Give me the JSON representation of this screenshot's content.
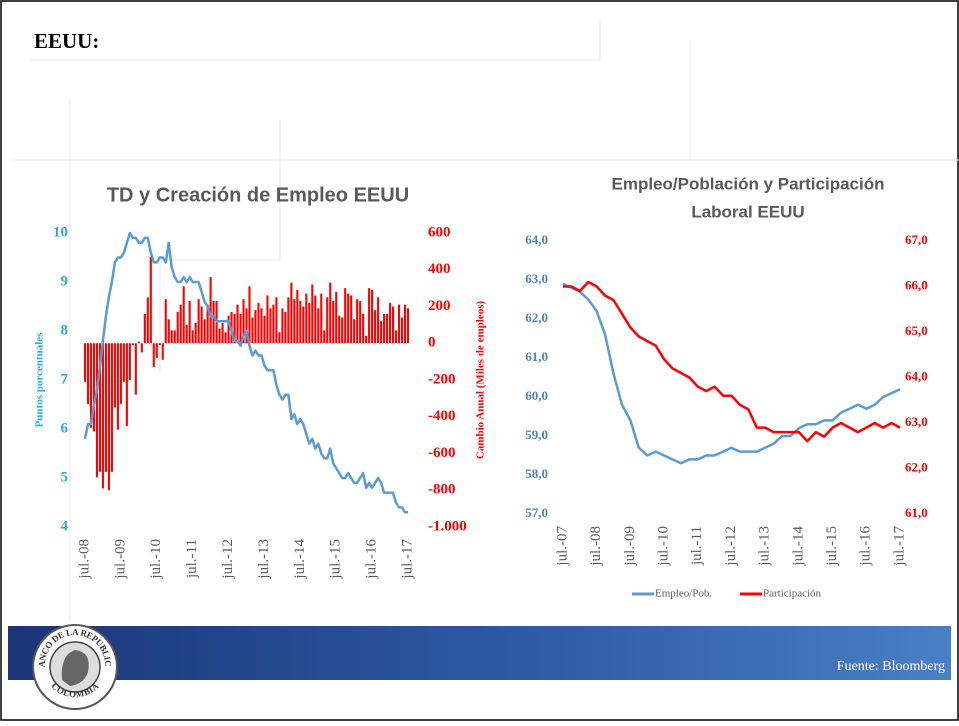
{
  "header": {
    "title": "EEUU:"
  },
  "footer": {
    "source": "Fuente: Bloomberg"
  },
  "logo": {
    "top": "BANCO DE LA REPUBLICA",
    "bottom": "COLOMBIA"
  },
  "chart_data": [
    {
      "type": "combo",
      "title": "TD y Creación de Empleo EEUU",
      "ylabel": "Puntos porcentuales",
      "y2label": "Cambio Anual (Miles de empleos)",
      "categories": [
        "jul.-08",
        null,
        null,
        null,
        null,
        null,
        null,
        null,
        null,
        null,
        null,
        null,
        "jul.-09",
        null,
        null,
        null,
        null,
        null,
        null,
        null,
        null,
        null,
        null,
        null,
        "jul.-10",
        null,
        null,
        null,
        null,
        null,
        null,
        null,
        null,
        null,
        null,
        null,
        "jul.-11",
        null,
        null,
        null,
        null,
        null,
        null,
        null,
        null,
        null,
        null,
        null,
        "jul.-12",
        null,
        null,
        null,
        null,
        null,
        null,
        null,
        null,
        null,
        null,
        null,
        "jul.-13",
        null,
        null,
        null,
        null,
        null,
        null,
        null,
        null,
        null,
        null,
        null,
        "jul.-14",
        null,
        null,
        null,
        null,
        null,
        null,
        null,
        null,
        null,
        null,
        null,
        "jul.-15",
        null,
        null,
        null,
        null,
        null,
        null,
        null,
        null,
        null,
        null,
        null,
        "jul.-16",
        null,
        null,
        null,
        null,
        null,
        null,
        null,
        null,
        null,
        null,
        null,
        "jul.-17"
      ],
      "ylim": [
        4,
        10
      ],
      "yticks": [
        4,
        5,
        6,
        7,
        8,
        9,
        10
      ],
      "y2lim": [
        -1000,
        600
      ],
      "y2ticks": [
        {
          "value": -1000,
          "label": "-1.000"
        },
        -800,
        -600,
        -400,
        -200,
        0,
        200,
        400,
        600
      ],
      "series": [
        {
          "type": "bar",
          "axis": "y2",
          "color": "#ff0000",
          "values": [
            -210,
            -330,
            -460,
            -480,
            -730,
            -700,
            -790,
            -700,
            -800,
            -700,
            -350,
            -470,
            -330,
            -210,
            -450,
            -200,
            -10,
            -280,
            10,
            -50,
            160,
            250,
            470,
            -130,
            -80,
            -10,
            -90,
            240,
            130,
            70,
            70,
            170,
            210,
            310,
            100,
            230,
            70,
            110,
            240,
            200,
            130,
            210,
            360,
            230,
            230,
            80,
            110,
            60,
            150,
            170,
            160,
            210,
            160,
            240,
            190,
            310,
            140,
            180,
            220,
            190,
            150,
            260,
            190,
            210,
            250,
            60,
            190,
            170,
            250,
            330,
            240,
            290,
            230,
            200,
            270,
            220,
            320,
            260,
            190,
            270,
            70,
            250,
            330,
            230,
            280,
            150,
            140,
            300,
            270,
            260,
            130,
            240,
            230,
            160,
            40,
            300,
            290,
            180,
            250,
            120,
            160,
            160,
            220,
            200,
            70,
            210,
            140,
            210,
            190
          ]
        },
        {
          "type": "line",
          "axis": "y",
          "color": "#5b9bd5",
          "values": [
            5.8,
            6.1,
            6.1,
            6.5,
            6.8,
            7.3,
            7.8,
            8.3,
            8.7,
            9.0,
            9.4,
            9.5,
            9.5,
            9.6,
            9.8,
            10.0,
            9.9,
            9.9,
            9.8,
            9.8,
            9.9,
            9.9,
            9.6,
            9.4,
            9.4,
            9.5,
            9.5,
            9.4,
            9.8,
            9.3,
            9.1,
            9.0,
            9.0,
            9.1,
            9.0,
            9.1,
            9.0,
            9.0,
            9.0,
            8.8,
            8.6,
            8.5,
            8.3,
            8.3,
            8.2,
            8.2,
            8.2,
            8.2,
            8.2,
            8.0,
            7.8,
            7.8,
            7.7,
            7.9,
            8.0,
            7.7,
            7.5,
            7.6,
            7.5,
            7.5,
            7.3,
            7.2,
            7.2,
            7.2,
            6.9,
            6.7,
            6.6,
            6.7,
            6.7,
            6.2,
            6.3,
            6.1,
            6.2,
            6.1,
            5.9,
            5.7,
            5.8,
            5.6,
            5.7,
            5.5,
            5.4,
            5.4,
            5.6,
            5.3,
            5.2,
            5.1,
            5.0,
            5.0,
            5.1,
            5.0,
            4.9,
            4.9,
            5.0,
            5.1,
            4.8,
            4.9,
            4.8,
            4.9,
            5.0,
            4.9,
            4.7,
            4.7,
            4.7,
            4.7,
            4.5,
            4.4,
            4.4,
            4.3,
            4.3
          ]
        }
      ]
    },
    {
      "type": "line",
      "title": "Empleo/Población y Participación Laboral EEUU",
      "title_lines": [
        "Empleo/Población y Participación",
        "Laboral EEUU"
      ],
      "categories": [
        "jul.-07",
        null,
        null,
        null,
        "jul.-08",
        null,
        null,
        null,
        "jul.-09",
        null,
        null,
        null,
        "jul.-10",
        null,
        null,
        null,
        "jul.-11",
        null,
        null,
        null,
        "jul.-12",
        null,
        null,
        null,
        "jul.-13",
        null,
        null,
        null,
        "jul.-14",
        null,
        null,
        null,
        "jul.-15",
        null,
        null,
        null,
        "jul.-16",
        null,
        null,
        null,
        "jul.-17"
      ],
      "ylim": [
        57,
        64
      ],
      "yticks": [
        {
          "value": 57,
          "label": "57,0"
        },
        {
          "value": 58,
          "label": "58,0"
        },
        {
          "value": 59,
          "label": "59,0"
        },
        {
          "value": 60,
          "label": "60,0"
        },
        {
          "value": 61,
          "label": "61,0"
        },
        {
          "value": 62,
          "label": "62,0"
        },
        {
          "value": 63,
          "label": "63,0"
        },
        {
          "value": 64,
          "label": "64,0"
        }
      ],
      "y2lim": [
        61,
        67
      ],
      "y2ticks": [
        {
          "value": 61,
          "label": "61,0"
        },
        {
          "value": 62,
          "label": "62,0"
        },
        {
          "value": 63,
          "label": "63,0"
        },
        {
          "value": 64,
          "label": "64,0"
        },
        {
          "value": 65,
          "label": "65,0"
        },
        {
          "value": 66,
          "label": "66,0"
        },
        {
          "value": 67,
          "label": "67,0"
        }
      ],
      "legend": "bottom",
      "series": [
        {
          "name": "Empleo/Pob.",
          "type": "line",
          "axis": "y",
          "color": "#5b9bd5",
          "values": [
            62.9,
            62.8,
            62.7,
            62.5,
            62.2,
            61.6,
            60.6,
            59.8,
            59.4,
            58.7,
            58.5,
            58.6,
            58.5,
            58.4,
            58.3,
            58.4,
            58.4,
            58.5,
            58.5,
            58.6,
            58.7,
            58.6,
            58.6,
            58.6,
            58.7,
            58.8,
            59.0,
            59.0,
            59.2,
            59.3,
            59.3,
            59.4,
            59.4,
            59.6,
            59.7,
            59.8,
            59.7,
            59.8,
            60.0,
            60.1,
            60.2
          ]
        },
        {
          "name": "Participación",
          "type": "line",
          "axis": "y2",
          "color": "#ff0000",
          "values": [
            66.0,
            66.0,
            65.9,
            66.1,
            66.0,
            65.8,
            65.7,
            65.4,
            65.1,
            64.9,
            64.8,
            64.7,
            64.4,
            64.2,
            64.1,
            64.0,
            63.8,
            63.7,
            63.8,
            63.6,
            63.6,
            63.4,
            63.3,
            62.9,
            62.9,
            62.8,
            62.8,
            62.8,
            62.8,
            62.6,
            62.8,
            62.7,
            62.9,
            63.0,
            62.9,
            62.8,
            62.9,
            63.0,
            62.9,
            63.0,
            62.9
          ]
        }
      ]
    }
  ]
}
